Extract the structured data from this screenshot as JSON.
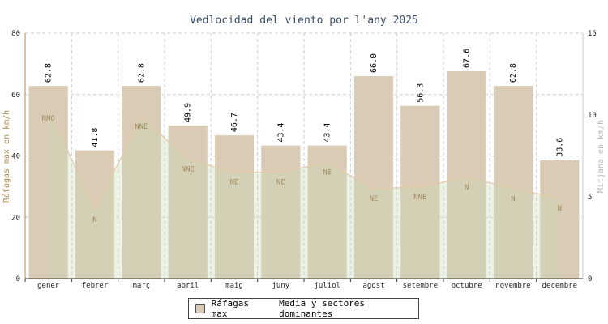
{
  "chart_data": {
    "type": "bar",
    "title": "Vedlocidad del viento por l'any 2025",
    "ylabel": "Ráfagas max en km/h",
    "y2label": "Mitjana en km/h",
    "ylim": [
      0,
      80
    ],
    "y2lim": [
      0,
      15
    ],
    "yticks": [
      "0",
      "20",
      "40",
      "60",
      "80"
    ],
    "y2ticks": [
      "0",
      "5",
      "10",
      "15"
    ],
    "grid": true,
    "categories": [
      "gener",
      "febrer",
      "març",
      "abril",
      "maig",
      "juny",
      "juliol",
      "agost",
      "setembre",
      "octubre",
      "novembre",
      "decembre"
    ],
    "series": [
      {
        "name": "Ráfagas max",
        "axis": "left",
        "kind": "bar",
        "color": "#d9cbb5",
        "values": [
          62.8,
          41.8,
          62.8,
          49.9,
          46.7,
          43.4,
          43.4,
          66.0,
          56.3,
          67.6,
          62.8,
          38.6
        ],
        "labels": [
          "62.8",
          "41.8",
          "62.8",
          "49.9",
          "46.7",
          "43.4",
          "43.4",
          "66.0",
          "56.3",
          "67.6",
          "62.8",
          "38.6"
        ]
      },
      {
        "name": "Media y sectores dominantes",
        "axis": "right",
        "kind": "area",
        "color": "#c9d9b8",
        "values": [
          10.4,
          4.2,
          9.9,
          7.3,
          6.5,
          6.5,
          7.1,
          5.5,
          5.6,
          6.2,
          5.5,
          4.9
        ],
        "directions": [
          "NNO",
          "N",
          "NNE",
          "NNE",
          "NE",
          "NE",
          "NE",
          "NE",
          "NNE",
          "N",
          "N",
          "N"
        ]
      }
    ],
    "legend_position": "bottom-center"
  }
}
